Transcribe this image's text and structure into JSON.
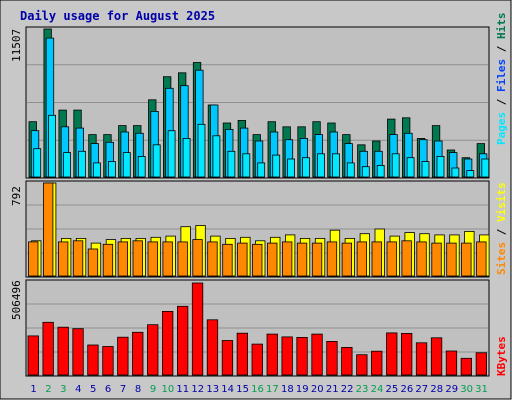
{
  "title": "Daily usage for August 2025",
  "colors": {
    "hits": "#007850",
    "files": "#00c8ff",
    "pages": "#00e8ff",
    "visits": "#ffff00",
    "sites": "#ff8800",
    "kbytes": "#ff0000",
    "weekday_label": "#0000aa",
    "weekend_label": "#00a050",
    "panel_bg": "#c0c0c0",
    "frame_bg": "#c8c8c8"
  },
  "chart_data": [
    {
      "type": "bar",
      "panel": "top",
      "ymax_label": "11507",
      "side_labels": {
        "a": "Pages",
        "b": "Files",
        "c": "Hits",
        "sep": " / "
      },
      "categories": [
        "1",
        "2",
        "3",
        "4",
        "5",
        "6",
        "7",
        "8",
        "9",
        "10",
        "11",
        "12",
        "13",
        "14",
        "15",
        "16",
        "17",
        "18",
        "19",
        "20",
        "21",
        "22",
        "23",
        "24",
        "25",
        "26",
        "27",
        "28",
        "29",
        "30",
        "31"
      ],
      "ylim": [
        0,
        11507
      ],
      "series": [
        {
          "name": "Hits",
          "values": [
            4300,
            11507,
            5200,
            5200,
            3300,
            3300,
            4000,
            4000,
            6000,
            7800,
            8100,
            8900,
            5600,
            4200,
            4400,
            3300,
            4300,
            3900,
            3900,
            4300,
            4200,
            3300,
            2500,
            2800,
            4500,
            4600,
            3000,
            4000,
            2100,
            1500,
            2600
          ]
        },
        {
          "name": "Files",
          "values": [
            3600,
            10800,
            3900,
            3800,
            2600,
            2700,
            3500,
            3400,
            5100,
            6900,
            7100,
            8300,
            5600,
            3700,
            3800,
            2800,
            3500,
            2900,
            3000,
            3300,
            3500,
            2600,
            2000,
            2000,
            3300,
            3400,
            2900,
            2800,
            1900,
            1400,
            1800
          ]
        },
        {
          "name": "Pages",
          "values": [
            2200,
            4800,
            1900,
            2000,
            1100,
            1200,
            1900,
            1600,
            2500,
            3600,
            3000,
            4100,
            3200,
            2000,
            1800,
            1100,
            1700,
            1400,
            1500,
            1800,
            1800,
            1100,
            800,
            900,
            1800,
            1500,
            1200,
            1600,
            700,
            500,
            1400
          ]
        }
      ]
    },
    {
      "type": "bar",
      "panel": "middle",
      "ymax_label": "792",
      "side_labels": {
        "a": "Sites",
        "b": "Visits",
        "sep": " / "
      },
      "categories": [
        "1",
        "2",
        "3",
        "4",
        "5",
        "6",
        "7",
        "8",
        "9",
        "10",
        "11",
        "12",
        "13",
        "14",
        "15",
        "16",
        "17",
        "18",
        "19",
        "20",
        "21",
        "22",
        "23",
        "24",
        "25",
        "26",
        "27",
        "28",
        "29",
        "30",
        "31"
      ],
      "ylim": [
        0,
        792
      ],
      "series": [
        {
          "name": "Visits",
          "values": [
            300,
            792,
            320,
            320,
            280,
            310,
            320,
            320,
            330,
            340,
            420,
            430,
            340,
            320,
            330,
            300,
            330,
            350,
            320,
            320,
            390,
            320,
            360,
            400,
            340,
            370,
            360,
            350,
            350,
            380,
            350
          ]
        },
        {
          "name": "Sites",
          "values": [
            290,
            792,
            290,
            300,
            230,
            270,
            290,
            300,
            290,
            290,
            290,
            310,
            290,
            270,
            280,
            270,
            280,
            290,
            280,
            280,
            290,
            280,
            290,
            290,
            290,
            300,
            290,
            280,
            280,
            280,
            290
          ]
        }
      ]
    },
    {
      "type": "bar",
      "panel": "bottom",
      "ymax_label": "506496",
      "side_labels": {
        "a": "KBytes"
      },
      "categories": [
        "1",
        "2",
        "3",
        "4",
        "5",
        "6",
        "7",
        "8",
        "9",
        "10",
        "11",
        "12",
        "13",
        "14",
        "15",
        "16",
        "17",
        "18",
        "19",
        "20",
        "21",
        "22",
        "23",
        "24",
        "25",
        "26",
        "27",
        "28",
        "29",
        "30",
        "31"
      ],
      "ylim": [
        0,
        506496
      ],
      "series": [
        {
          "name": "KBytes",
          "values": [
            215000,
            290000,
            263000,
            255000,
            165000,
            157000,
            208000,
            235000,
            277000,
            350000,
            378000,
            506496,
            304000,
            190000,
            230000,
            170000,
            225000,
            210000,
            207000,
            225000,
            185000,
            152000,
            112000,
            131000,
            232000,
            229000,
            177000,
            205000,
            132000,
            92000,
            122000
          ]
        }
      ],
      "weekend_days": [
        "2",
        "3",
        "9",
        "10",
        "16",
        "17",
        "23",
        "24",
        "30",
        "31"
      ]
    }
  ]
}
